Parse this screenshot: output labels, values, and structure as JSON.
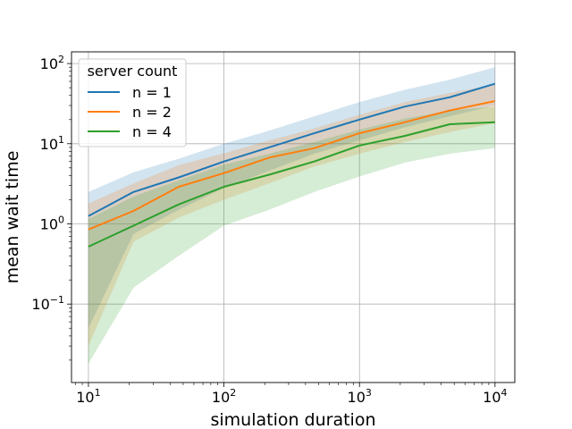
{
  "chart_data": {
    "type": "line",
    "title": "",
    "xlabel": "simulation duration",
    "ylabel": "mean wait time",
    "xscale": "log",
    "yscale": "log",
    "xlim": [
      7.5,
      14000
    ],
    "ylim": [
      0.0105,
      140
    ],
    "grid": true,
    "x_ticks": [
      {
        "value": 10,
        "base": "10",
        "exp": "1"
      },
      {
        "value": 100,
        "base": "10",
        "exp": "2"
      },
      {
        "value": 1000,
        "base": "10",
        "exp": "3"
      },
      {
        "value": 10000,
        "base": "10",
        "exp": "4"
      }
    ],
    "y_ticks": [
      {
        "value": 0.1,
        "base": "10",
        "exp": "−1"
      },
      {
        "value": 1,
        "base": "10",
        "exp": "0"
      },
      {
        "value": 10,
        "base": "10",
        "exp": "1"
      },
      {
        "value": 100,
        "base": "10",
        "exp": "2"
      }
    ],
    "legend": {
      "title": "server count",
      "location": "upper-left"
    },
    "x": [
      10,
      21.5,
      46.4,
      100,
      215,
      464,
      1000,
      2154,
      4642,
      10000
    ],
    "series": [
      {
        "name": "n = 1",
        "color": "#1f77b4",
        "values": [
          1.25,
          2.5,
          3.8,
          6.0,
          9.0,
          13.5,
          20.0,
          29.0,
          38.0,
          56.0
        ],
        "lower": [
          0.05,
          0.75,
          1.5,
          2.8,
          4.6,
          7.5,
          11.0,
          16.0,
          22.0,
          30.0
        ],
        "upper": [
          2.5,
          4.4,
          6.5,
          10.0,
          14.5,
          22.0,
          33.0,
          47.0,
          63.0,
          90.0
        ]
      },
      {
        "name": "n = 2",
        "color": "#ff7f0e",
        "values": [
          0.85,
          1.45,
          2.9,
          4.3,
          6.7,
          8.8,
          13.5,
          18.5,
          26.0,
          34.0
        ],
        "lower": [
          0.03,
          0.6,
          1.2,
          2.0,
          3.2,
          5.2,
          7.5,
          10.5,
          14.0,
          18.0
        ],
        "upper": [
          1.8,
          3.2,
          5.4,
          7.6,
          11.0,
          15.5,
          23.0,
          33.0,
          43.0,
          55.0
        ]
      },
      {
        "name": "n = 4",
        "color": "#2ca02c",
        "values": [
          0.52,
          0.95,
          1.75,
          2.9,
          4.1,
          6.0,
          9.5,
          12.5,
          17.5,
          18.5
        ],
        "lower": [
          0.018,
          0.16,
          0.4,
          0.95,
          1.5,
          2.5,
          3.9,
          5.8,
          7.5,
          8.8
        ],
        "upper": [
          1.15,
          2.2,
          3.5,
          5.5,
          7.5,
          10.5,
          15.0,
          20.5,
          26.0,
          29.0
        ]
      }
    ]
  }
}
